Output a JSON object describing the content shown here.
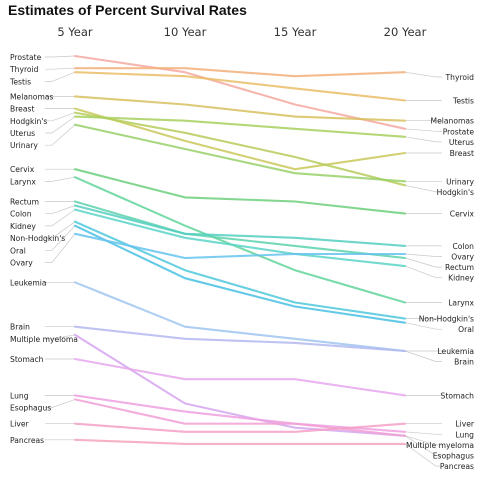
{
  "chart_data": {
    "type": "line",
    "title": "Estimates of Percent Survival Rates",
    "categories": [
      "5 Year",
      "10 Year",
      "15 Year",
      "20 Year"
    ],
    "ylim": [
      0,
      100
    ],
    "series": [
      {
        "name": "Prostate",
        "values": [
          99,
          95,
          87,
          81
        ],
        "color": "#f4a9a0"
      },
      {
        "name": "Thyroid",
        "values": [
          96,
          96,
          94,
          95
        ],
        "color": "#f2b07a"
      },
      {
        "name": "Testis",
        "values": [
          95,
          94,
          91,
          88
        ],
        "color": "#e9bd66"
      },
      {
        "name": "Melanomas",
        "values": [
          89,
          87,
          84,
          83
        ],
        "color": "#d7c05e"
      },
      {
        "name": "Breast",
        "values": [
          86,
          78,
          71,
          75
        ],
        "color": "#c9c85a"
      },
      {
        "name": "Hodgkin's",
        "values": [
          85,
          80,
          74,
          67
        ],
        "color": "#b6cc5b"
      },
      {
        "name": "Uterus",
        "values": [
          84,
          83,
          81,
          79
        ],
        "color": "#a7d05e"
      },
      {
        "name": "Urinary",
        "values": [
          82,
          76,
          70,
          68
        ],
        "color": "#98d068"
      },
      {
        "name": "Cervix",
        "values": [
          71,
          64,
          63,
          60
        ],
        "color": "#6ccf7b"
      },
      {
        "name": "Larynx",
        "values": [
          69,
          57,
          46,
          38
        ],
        "color": "#62d39b"
      },
      {
        "name": "Rectum",
        "values": [
          63,
          55,
          52,
          49
        ],
        "color": "#5dd1ad"
      },
      {
        "name": "Colon",
        "values": [
          62,
          55,
          54,
          52
        ],
        "color": "#54cfbf"
      },
      {
        "name": "Kidney",
        "values": [
          61,
          54,
          50,
          47
        ],
        "color": "#5ad3c8"
      },
      {
        "name": "Non-Hodgkin's",
        "values": [
          58,
          46,
          38,
          34
        ],
        "color": "#4ec8db"
      },
      {
        "name": "Oral",
        "values": [
          57,
          44,
          37,
          33
        ],
        "color": "#46bfe3"
      },
      {
        "name": "Ovary",
        "values": [
          55,
          49,
          50,
          50
        ],
        "color": "#65c3ee"
      },
      {
        "name": "Leukemia",
        "values": [
          43,
          32,
          29,
          26
        ],
        "color": "#9fc4f0"
      },
      {
        "name": "Brain",
        "values": [
          32,
          29,
          28,
          26
        ],
        "color": "#b3b8ef"
      },
      {
        "name": "Multiple myeloma",
        "values": [
          30,
          13,
          7,
          5
        ],
        "color": "#d6a6ef"
      },
      {
        "name": "Stomach",
        "values": [
          24,
          19,
          19,
          15
        ],
        "color": "#e6a7ed"
      },
      {
        "name": "Lung",
        "values": [
          15,
          11,
          8,
          6
        ],
        "color": "#ef9fe1"
      },
      {
        "name": "Esophagus",
        "values": [
          14,
          8,
          8,
          5
        ],
        "color": "#f1a0d5"
      },
      {
        "name": "Liver",
        "values": [
          8,
          6,
          6,
          8
        ],
        "color": "#f49fc6"
      },
      {
        "name": "Pancreas",
        "values": [
          4,
          3,
          3,
          3
        ],
        "color": "#f6a3bb"
      }
    ]
  }
}
